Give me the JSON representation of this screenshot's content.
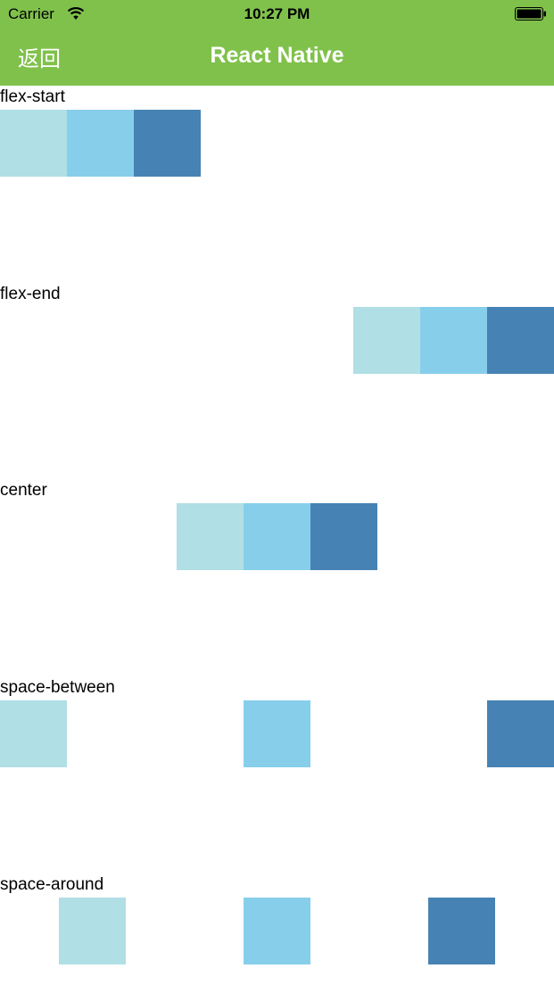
{
  "status_bar": {
    "carrier": "Carrier",
    "time": "10:27 PM",
    "wifi_icon": "wifi-icon",
    "battery_icon": "battery-icon"
  },
  "nav": {
    "back_label": "返回",
    "title": "React Native",
    "background": "#80c14c"
  },
  "colors": {
    "box1": "#b0dfe5",
    "box2": "#87ceeb",
    "box3": "#4682b4"
  },
  "sections": [
    {
      "label": "flex-start",
      "justify": "flex-start"
    },
    {
      "label": "flex-end",
      "justify": "flex-end"
    },
    {
      "label": "center",
      "justify": "center"
    },
    {
      "label": "space-between",
      "justify": "space-between"
    },
    {
      "label": "space-around",
      "justify": "space-around"
    }
  ]
}
